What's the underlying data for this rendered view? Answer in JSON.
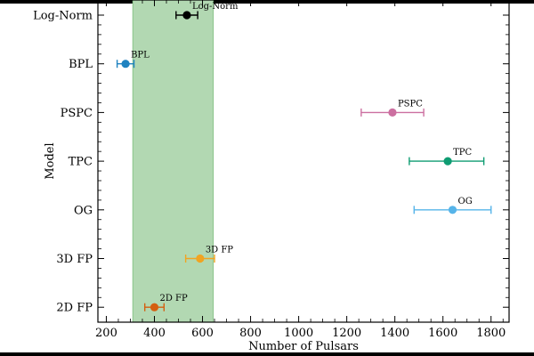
{
  "chart_data": {
    "type": "scatter",
    "xlabel": "Number of Pulsars",
    "ylabel": "Model",
    "xlim": [
      165,
      1875
    ],
    "xticks": [
      200,
      400,
      600,
      800,
      1000,
      1200,
      1400,
      1600,
      1800
    ],
    "xtick_labels": [
      "200",
      "400",
      "600",
      "800",
      "1000",
      "1200",
      "1400",
      "1600",
      "1800"
    ],
    "categories": [
      "Log-Norm",
      "BPL",
      "PSPC",
      "TPC",
      "OG",
      "3D FP",
      "2D FP"
    ],
    "shaded_band": {
      "x_range": [
        310,
        645
      ],
      "color": "#b2d8b2"
    },
    "points": [
      {
        "model": "Log-Norm",
        "label": "Log-Norm",
        "value": 535,
        "err_low": 490,
        "err_high": 580,
        "color": "#000000"
      },
      {
        "model": "BPL",
        "label": "BPL",
        "value": 280,
        "err_low": 245,
        "err_high": 315,
        "color": "#1f82c0"
      },
      {
        "model": "PSPC",
        "label": "PSPC",
        "value": 1390,
        "err_low": 1260,
        "err_high": 1520,
        "color": "#cc6fa0"
      },
      {
        "model": "TPC",
        "label": "TPC",
        "value": 1620,
        "err_low": 1460,
        "err_high": 1770,
        "color": "#0e9c72"
      },
      {
        "model": "OG",
        "label": "OG",
        "value": 1640,
        "err_low": 1480,
        "err_high": 1800,
        "color": "#56b4e9"
      },
      {
        "model": "3D FP",
        "label": "3D FP",
        "value": 590,
        "err_low": 530,
        "err_high": 650,
        "color": "#f0a422"
      },
      {
        "model": "2D FP",
        "label": "2D FP",
        "value": 400,
        "err_low": 360,
        "err_high": 440,
        "color": "#d45f10"
      }
    ]
  }
}
